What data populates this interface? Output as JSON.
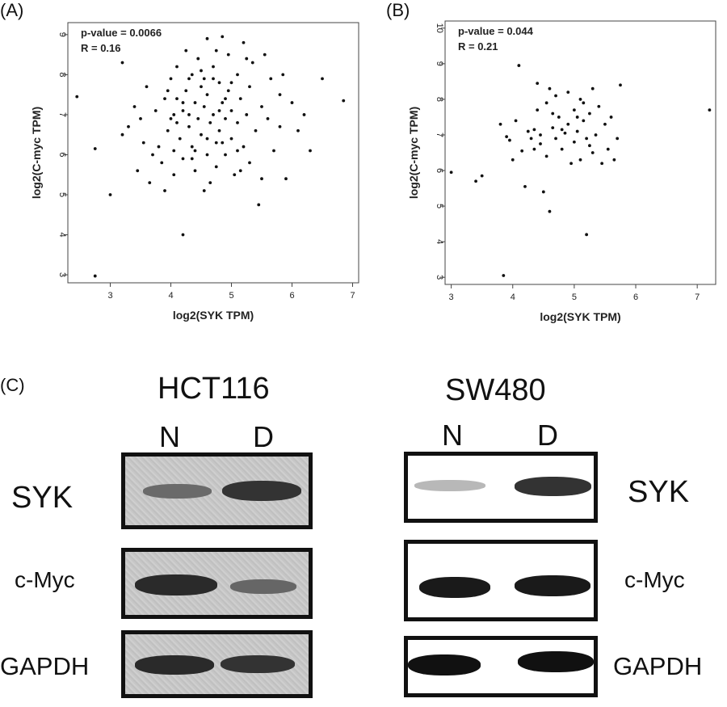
{
  "panels": {
    "a": "(A)",
    "b": "(B)",
    "c": "(C)"
  },
  "chart_data": [
    {
      "type": "scatter",
      "panel": "(A)",
      "xlabel": "log2(SYK TPM)",
      "ylabel": "log2(C-myc TPM)",
      "xlim": [
        2.3,
        7.1
      ],
      "ylim": [
        2.8,
        9.3
      ],
      "xticks": [
        3,
        4,
        5,
        6,
        7
      ],
      "yticks": [
        3,
        4,
        5,
        6,
        7,
        8,
        9
      ],
      "annotations": [
        "p-value = 0.0066",
        "R = 0.16"
      ],
      "points": [
        [
          2.45,
          7.45
        ],
        [
          2.75,
          6.15
        ],
        [
          2.75,
          2.97
        ],
        [
          3.0,
          5.0
        ],
        [
          3.2,
          8.3
        ],
        [
          3.2,
          6.5
        ],
        [
          3.3,
          6.7
        ],
        [
          3.4,
          7.2
        ],
        [
          3.45,
          5.6
        ],
        [
          3.5,
          6.9
        ],
        [
          3.55,
          6.3
        ],
        [
          3.6,
          7.7
        ],
        [
          3.65,
          5.3
        ],
        [
          3.7,
          6.0
        ],
        [
          3.75,
          7.1
        ],
        [
          3.8,
          6.2
        ],
        [
          3.85,
          5.8
        ],
        [
          3.9,
          7.4
        ],
        [
          3.9,
          5.1
        ],
        [
          3.95,
          6.6
        ],
        [
          4.0,
          7.9
        ],
        [
          4.0,
          6.9
        ],
        [
          4.05,
          5.5
        ],
        [
          4.05,
          6.1
        ],
        [
          4.1,
          7.4
        ],
        [
          4.1,
          8.2
        ],
        [
          4.15,
          6.4
        ],
        [
          4.2,
          7.1
        ],
        [
          4.2,
          5.9
        ],
        [
          4.2,
          4.0
        ],
        [
          4.25,
          8.6
        ],
        [
          4.25,
          7.6
        ],
        [
          4.3,
          6.7
        ],
        [
          4.3,
          7.0
        ],
        [
          4.35,
          8.0
        ],
        [
          4.35,
          6.2
        ],
        [
          4.4,
          7.3
        ],
        [
          4.4,
          5.6
        ],
        [
          4.45,
          8.4
        ],
        [
          4.45,
          6.9
        ],
        [
          4.5,
          7.7
        ],
        [
          4.5,
          6.5
        ],
        [
          4.55,
          7.2
        ],
        [
          4.55,
          5.1
        ],
        [
          4.6,
          8.9
        ],
        [
          4.6,
          6.0
        ],
        [
          4.6,
          7.5
        ],
        [
          4.65,
          6.8
        ],
        [
          4.7,
          8.2
        ],
        [
          4.7,
          7.0
        ],
        [
          4.75,
          6.3
        ],
        [
          4.75,
          5.7
        ],
        [
          4.8,
          7.8
        ],
        [
          4.8,
          6.6
        ],
        [
          4.85,
          8.95
        ],
        [
          4.85,
          7.3
        ],
        [
          4.9,
          6.9
        ],
        [
          4.9,
          6.0
        ],
        [
          4.95,
          8.5
        ],
        [
          4.95,
          7.6
        ],
        [
          5.0,
          7.1
        ],
        [
          5.0,
          6.4
        ],
        [
          5.05,
          5.5
        ],
        [
          5.1,
          8.0
        ],
        [
          5.1,
          6.8
        ],
        [
          5.15,
          7.4
        ],
        [
          5.2,
          8.8
        ],
        [
          5.2,
          6.2
        ],
        [
          5.25,
          7.0
        ],
        [
          5.3,
          5.8
        ],
        [
          5.3,
          7.7
        ],
        [
          5.35,
          8.3
        ],
        [
          5.4,
          6.6
        ],
        [
          5.45,
          4.75
        ],
        [
          5.5,
          7.2
        ],
        [
          5.5,
          5.4
        ],
        [
          5.55,
          8.5
        ],
        [
          5.6,
          6.9
        ],
        [
          5.65,
          7.9
        ],
        [
          5.7,
          6.1
        ],
        [
          5.8,
          7.5
        ],
        [
          5.8,
          6.7
        ],
        [
          5.85,
          8.0
        ],
        [
          5.9,
          5.4
        ],
        [
          6.0,
          7.3
        ],
        [
          6.1,
          6.6
        ],
        [
          6.2,
          7.0
        ],
        [
          6.3,
          6.1
        ],
        [
          6.5,
          7.9
        ],
        [
          6.85,
          7.35
        ],
        [
          4.1,
          6.8
        ],
        [
          4.3,
          7.9
        ],
        [
          4.5,
          8.1
        ],
        [
          4.7,
          7.9
        ],
        [
          4.4,
          6.1
        ],
        [
          4.6,
          6.4
        ],
        [
          4.8,
          7.1
        ],
        [
          5.0,
          7.8
        ],
        [
          4.2,
          7.3
        ],
        [
          4.9,
          7.4
        ],
        [
          5.1,
          6.1
        ],
        [
          4.35,
          5.9
        ],
        [
          4.65,
          5.3
        ],
        [
          4.75,
          8.6
        ],
        [
          5.25,
          8.4
        ],
        [
          4.55,
          7.9
        ],
        [
          4.05,
          7.0
        ],
        [
          3.95,
          7.6
        ],
        [
          5.15,
          5.6
        ],
        [
          4.85,
          6.3
        ]
      ]
    },
    {
      "type": "scatter",
      "panel": "(B)",
      "xlabel": "log2(SYK TPM)",
      "ylabel": "log2(C-myc TPM)",
      "xlim": [
        2.9,
        7.3
      ],
      "ylim": [
        2.8,
        10.2
      ],
      "xticks": [
        3,
        4,
        5,
        6,
        7
      ],
      "yticks": [
        3,
        4,
        5,
        6,
        7,
        8,
        9,
        10
      ],
      "annotations": [
        "p-value = 0.044",
        "R = 0.21"
      ],
      "points": [
        [
          3.0,
          5.95
        ],
        [
          3.4,
          5.7
        ],
        [
          3.5,
          5.85
        ],
        [
          3.8,
          7.3
        ],
        [
          3.85,
          3.05
        ],
        [
          3.9,
          6.95
        ],
        [
          3.95,
          6.85
        ],
        [
          4.0,
          6.3
        ],
        [
          4.05,
          7.4
        ],
        [
          4.1,
          8.95
        ],
        [
          4.15,
          6.55
        ],
        [
          4.2,
          5.55
        ],
        [
          4.25,
          7.1
        ],
        [
          4.3,
          6.9
        ],
        [
          4.35,
          6.6
        ],
        [
          4.4,
          7.7
        ],
        [
          4.4,
          8.45
        ],
        [
          4.45,
          7.0
        ],
        [
          4.5,
          5.4
        ],
        [
          4.55,
          7.9
        ],
        [
          4.55,
          6.4
        ],
        [
          4.6,
          4.85
        ],
        [
          4.6,
          8.3
        ],
        [
          4.65,
          7.2
        ],
        [
          4.7,
          6.9
        ],
        [
          4.75,
          7.5
        ],
        [
          4.8,
          6.6
        ],
        [
          4.85,
          7.05
        ],
        [
          4.9,
          8.2
        ],
        [
          4.9,
          7.3
        ],
        [
          4.95,
          6.2
        ],
        [
          5.0,
          7.7
        ],
        [
          5.0,
          6.8
        ],
        [
          5.05,
          7.1
        ],
        [
          5.1,
          8.0
        ],
        [
          5.1,
          6.3
        ],
        [
          5.15,
          7.4
        ],
        [
          5.2,
          4.2
        ],
        [
          5.2,
          6.9
        ],
        [
          5.25,
          7.6
        ],
        [
          5.3,
          8.3
        ],
        [
          5.3,
          6.5
        ],
        [
          5.35,
          7.0
        ],
        [
          5.4,
          7.8
        ],
        [
          5.45,
          6.2
        ],
        [
          5.5,
          7.3
        ],
        [
          5.55,
          6.6
        ],
        [
          5.6,
          7.5
        ],
        [
          5.65,
          6.3
        ],
        [
          5.7,
          6.9
        ],
        [
          5.75,
          8.4
        ],
        [
          7.2,
          7.7
        ],
        [
          4.45,
          6.75
        ],
        [
          4.65,
          7.6
        ],
        [
          4.8,
          7.15
        ],
        [
          5.05,
          7.5
        ],
        [
          5.25,
          6.7
        ],
        [
          4.35,
          7.15
        ],
        [
          4.7,
          8.1
        ],
        [
          5.15,
          7.9
        ]
      ]
    }
  ],
  "blots": {
    "hct116": {
      "title": "HCT116",
      "lane_n": "N",
      "lane_d": "D",
      "rows": [
        "SYK",
        "c-Myc",
        "GAPDH"
      ]
    },
    "sw480": {
      "title": "SW480",
      "lane_n": "N",
      "lane_d": "D",
      "rows": [
        "SYK",
        "c-Myc",
        "GAPDH"
      ]
    }
  }
}
